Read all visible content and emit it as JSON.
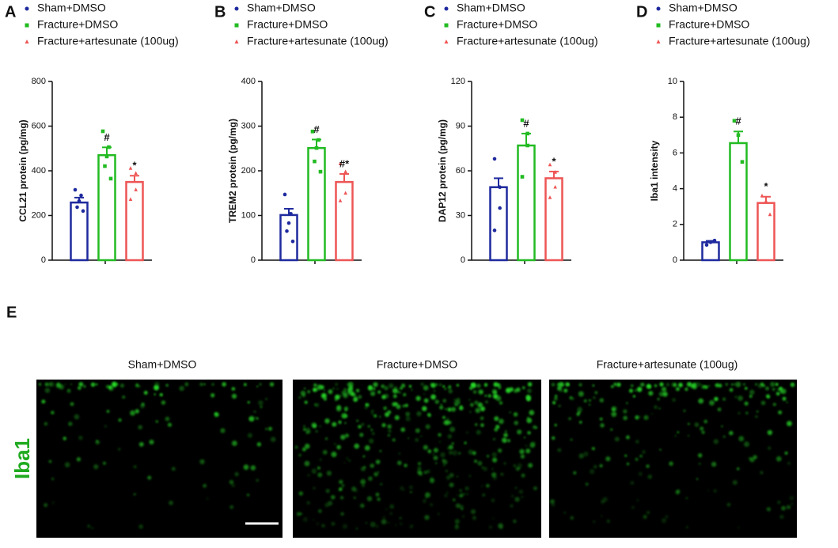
{
  "chart_data": [
    {
      "type": "bar",
      "panel_label": "A",
      "ylabel": "CCL21 protein (pg/mg)",
      "ylim": [
        0,
        800
      ],
      "yticks": [
        0,
        200,
        400,
        600,
        800
      ],
      "series": [
        {
          "name": "Sham+DMSO",
          "color": "#1f2a9e",
          "marker": "circle",
          "value": 258,
          "error": 22,
          "points": [
            315,
            290,
            265,
            237,
            220
          ]
        },
        {
          "name": "Fracture+DMSO",
          "color": "#22bb22",
          "marker": "square",
          "value": 470,
          "error": 35,
          "points": [
            577,
            506,
            464,
            421,
            365
          ],
          "annotation": "#"
        },
        {
          "name": "Fracture+artesunate (100ug)",
          "color": "#ee5555",
          "marker": "triangle",
          "value": 350,
          "error": 28,
          "points": [
            411,
            389,
            315,
            272
          ],
          "annotation": "*"
        }
      ]
    },
    {
      "type": "bar",
      "panel_label": "B",
      "ylabel": "TREM2 protein (pg/mg)",
      "ylim": [
        0,
        400
      ],
      "yticks": [
        0,
        100,
        200,
        300,
        400
      ],
      "series": [
        {
          "name": "Sham+DMSO",
          "color": "#1f2a9e",
          "marker": "circle",
          "value": 101,
          "error": 14,
          "points": [
            147,
            104,
            83,
            65,
            42
          ]
        },
        {
          "name": "Fracture+DMSO",
          "color": "#22bb22",
          "marker": "square",
          "value": 251,
          "error": 19,
          "points": [
            288,
            269,
            251,
            221,
            198
          ],
          "annotation": "#"
        },
        {
          "name": "Fracture+artesunate (100ug)",
          "color": "#ee5555",
          "marker": "triangle",
          "value": 175,
          "error": 18,
          "points": [
            216,
            198,
            150,
            133
          ],
          "annotation": "#*"
        }
      ]
    },
    {
      "type": "bar",
      "panel_label": "C",
      "ylabel": "DAP12 protein (pg/mg)",
      "ylim": [
        0,
        120
      ],
      "yticks": [
        0,
        30,
        60,
        90,
        120
      ],
      "series": [
        {
          "name": "Sham+DMSO",
          "color": "#1f2a9e",
          "marker": "circle",
          "value": 49,
          "error": 6,
          "points": [
            68,
            49,
            35,
            20
          ]
        },
        {
          "name": "Fracture+DMSO",
          "color": "#22bb22",
          "marker": "square",
          "value": 77,
          "error": 8,
          "points": [
            94,
            85,
            77,
            56
          ],
          "annotation": "#"
        },
        {
          "name": "Fracture+artesunate (100ug)",
          "color": "#ee5555",
          "marker": "triangle",
          "value": 55,
          "error": 4.5,
          "points": [
            64,
            59,
            49,
            42
          ],
          "annotation": "*"
        }
      ]
    },
    {
      "type": "bar",
      "panel_label": "D",
      "ylabel": "Iba1 intensity",
      "ylim": [
        0,
        10
      ],
      "yticks": [
        0,
        2,
        4,
        6,
        8,
        10
      ],
      "series": [
        {
          "name": "Sham+DMSO",
          "color": "#1f2a9e",
          "marker": "circle",
          "value": 1.0,
          "error": 0.08,
          "points": [
            0.85,
            1.0,
            1.1
          ]
        },
        {
          "name": "Fracture+DMSO",
          "color": "#22bb22",
          "marker": "square",
          "value": 6.55,
          "error": 0.65,
          "points": [
            7.8,
            7.0,
            5.5
          ],
          "annotation": "#"
        },
        {
          "name": "Fracture+artesunate (100ug)",
          "color": "#ee5555",
          "marker": "triangle",
          "value": 3.2,
          "error": 0.35,
          "points": [
            3.6,
            3.3,
            2.55
          ],
          "annotation": "*"
        }
      ]
    }
  ],
  "panel_e": {
    "label": "E",
    "stain": "Iba1",
    "titles": [
      "Sham+DMSO",
      "Fracture+DMSO",
      "Fracture+artesunate (100ug)"
    ]
  }
}
